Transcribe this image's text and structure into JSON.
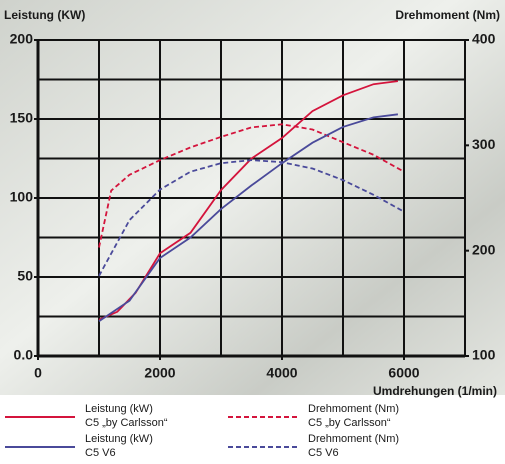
{
  "chart_data": {
    "type": "line",
    "ylabel": "Leistung (KW)",
    "y2label": "Drehmoment (Nm)",
    "xlabel": "Umdrehungen (1/min)",
    "xlim": [
      0,
      7000
    ],
    "xticks": [
      0,
      2000,
      4000,
      6000
    ],
    "xgrid": [
      1000,
      2000,
      3000,
      4000,
      5000,
      6000,
      7000
    ],
    "ylim": [
      0,
      200
    ],
    "yticks": [
      {
        "value": 0,
        "label": "0.0"
      },
      50,
      100,
      150,
      200
    ],
    "ygrid": [
      25,
      50,
      75,
      100,
      125,
      150,
      175,
      200
    ],
    "y2lim": [
      100,
      400
    ],
    "y2ticks": [
      100,
      200,
      300,
      400
    ],
    "series": [
      {
        "name": "Leistung (kW)",
        "model": "C5 „by Carlsson“",
        "color": "#d4143c",
        "dashed": false,
        "x": [
          1000,
          1300,
          1600,
          2000,
          2500,
          3000,
          3500,
          4000,
          4500,
          5000,
          5500,
          5900
        ],
        "values": [
          23,
          28,
          40,
          65,
          78,
          105,
          125,
          138,
          155,
          165,
          172,
          174
        ]
      },
      {
        "name": "Drehmoment (Nm)",
        "model": "C5 „by Carlsson“",
        "color": "#d4143c",
        "dashed": true,
        "axis": "y2",
        "x": [
          1000,
          1200,
          1500,
          2000,
          2500,
          3000,
          3500,
          4000,
          4500,
          5000,
          5500,
          6000
        ],
        "values": [
          203,
          257,
          272,
          286,
          298,
          308,
          317,
          320,
          315,
          303,
          291,
          275
        ]
      },
      {
        "name": "Leistung (kW)",
        "model": "C5 V6",
        "color": "#4a4a9a",
        "dashed": false,
        "x": [
          1000,
          1500,
          2000,
          2500,
          3000,
          3500,
          4000,
          4500,
          5000,
          5500,
          5900
        ],
        "values": [
          22,
          35,
          62,
          75,
          93,
          108,
          122,
          135,
          145,
          151,
          153
        ]
      },
      {
        "name": "Drehmoment (Nm)",
        "model": "C5 V6",
        "color": "#4a4a9a",
        "dashed": true,
        "axis": "y2",
        "x": [
          1000,
          1500,
          2000,
          2500,
          3000,
          3500,
          4000,
          4500,
          5000,
          5500,
          6000
        ],
        "values": [
          176,
          229,
          258,
          275,
          283,
          286,
          284,
          278,
          267,
          253,
          237
        ]
      }
    ]
  }
}
